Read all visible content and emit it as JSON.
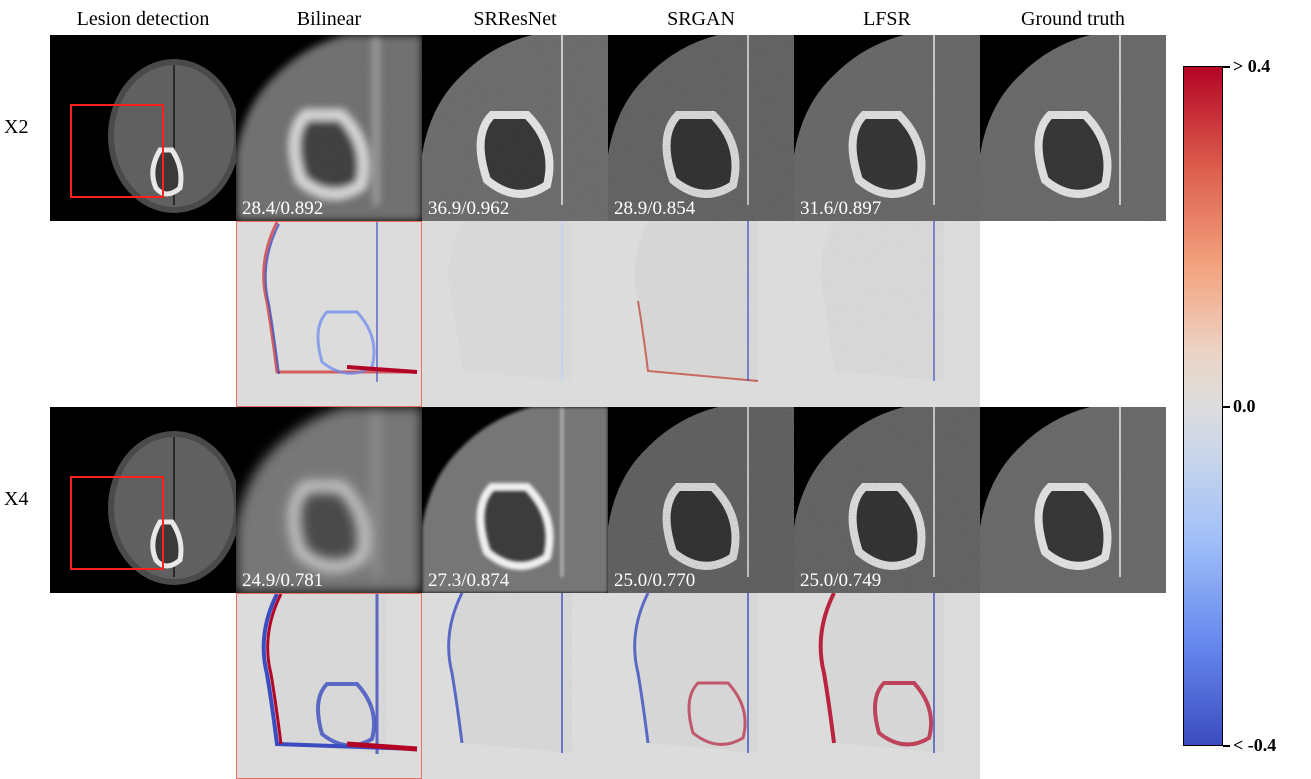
{
  "columns": [
    "Lesion detection",
    "Bilinear",
    "SRResNet",
    "SRGAN",
    "LFSR",
    "Ground truth"
  ],
  "rows": [
    {
      "label": "X2",
      "metrics": [
        "28.4/0.892",
        "36.9/0.962",
        "28.9/0.854",
        "31.6/0.897"
      ]
    },
    {
      "label": "X4",
      "metrics": [
        "24.9/0.781",
        "27.3/0.874",
        "25.0/0.770",
        "25.0/0.749"
      ]
    }
  ],
  "colorbar": {
    "max_label": "> 0.4",
    "mid_label": "0.0",
    "min_label": "< -0.4"
  },
  "colors": {
    "box": "#ff2020",
    "high": "#b40426",
    "low": "#3b4cc0",
    "neutral": "#dddddd"
  }
}
